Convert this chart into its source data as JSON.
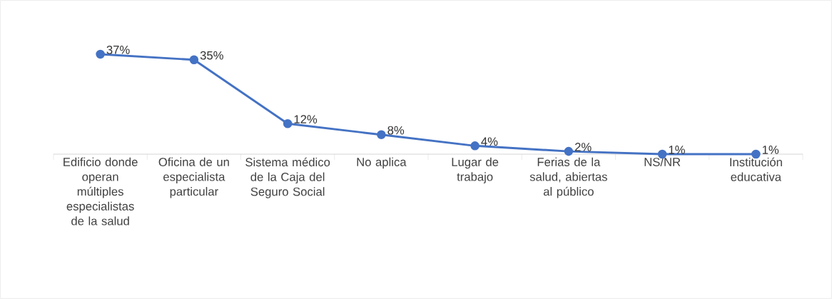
{
  "chart_data": {
    "type": "line",
    "categories": [
      "Edificio donde operan múltiples especialistas de la salud",
      "Oficina de un especialista particular",
      "Sistema médico de la Caja del Seguro Social",
      "No aplica",
      "Lugar de trabajo",
      "Ferias de la salud, abiertas al público",
      "NS/NR",
      "Institución educativa"
    ],
    "values": [
      37,
      35,
      12,
      8,
      4,
      2,
      1,
      1
    ],
    "value_labels": [
      "37%",
      "35%",
      "12%",
      "8%",
      "4%",
      "2%",
      "1%",
      "1%"
    ],
    "color": "#4472c4",
    "marker": "circle",
    "line_style": "solid",
    "tick_labels": "x"
  }
}
